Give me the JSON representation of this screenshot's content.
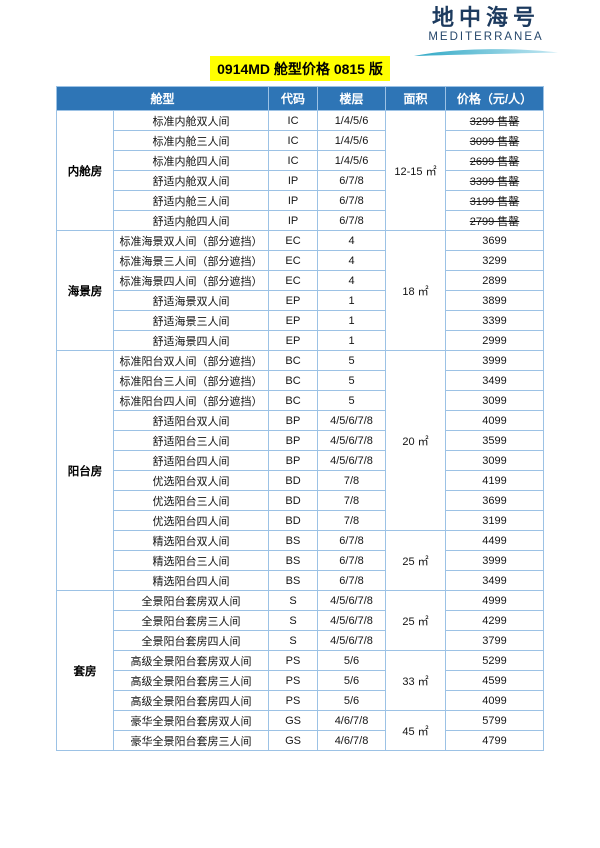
{
  "logo": {
    "title_cn": "地中海号",
    "title_en": "MEDITERRANEA"
  },
  "title": "0914MD 舱型价格 0815 版",
  "colors": {
    "header_bg": "#2E75B6",
    "border": "#9CC2E5",
    "title_bg": "#FFFF00",
    "logo_navy": "#1C3A5E",
    "swoosh_start": "#2FA8C5",
    "swoosh_end": "#C3E7F2"
  },
  "table": {
    "headers": {
      "cabin_type": "舱型",
      "code": "代码",
      "floor": "楼层",
      "area": "面积",
      "price": "价格（元/人）"
    },
    "sold_out_label": "售罄",
    "groups": [
      {
        "label": "内舱房",
        "areas": [
          {
            "label": "12-15 ㎡",
            "span": 6
          }
        ],
        "rows": [
          {
            "name": "标准内舱双人间",
            "code": "IC",
            "floor": "1/4/5/6",
            "price": "3299",
            "sold_out": true
          },
          {
            "name": "标准内舱三人间",
            "code": "IC",
            "floor": "1/4/5/6",
            "price": "3099",
            "sold_out": true
          },
          {
            "name": "标准内舱四人间",
            "code": "IC",
            "floor": "1/4/5/6",
            "price": "2699",
            "sold_out": true
          },
          {
            "name": "舒适内舱双人间",
            "code": "IP",
            "floor": "6/7/8",
            "price": "3399",
            "sold_out": true
          },
          {
            "name": "舒适内舱三人间",
            "code": "IP",
            "floor": "6/7/8",
            "price": "3199",
            "sold_out": true
          },
          {
            "name": "舒适内舱四人间",
            "code": "IP",
            "floor": "6/7/8",
            "price": "2799",
            "sold_out": true
          }
        ]
      },
      {
        "label": "海景房",
        "areas": [
          {
            "label": "18 ㎡",
            "span": 6
          }
        ],
        "rows": [
          {
            "name": "标准海景双人间（部分遮挡）",
            "code": "EC",
            "floor": "4",
            "price": "3699",
            "sold_out": false
          },
          {
            "name": "标准海景三人间（部分遮挡）",
            "code": "EC",
            "floor": "4",
            "price": "3299",
            "sold_out": false
          },
          {
            "name": "标准海景四人间（部分遮挡）",
            "code": "EC",
            "floor": "4",
            "price": "2899",
            "sold_out": false
          },
          {
            "name": "舒适海景双人间",
            "code": "EP",
            "floor": "1",
            "price": "3899",
            "sold_out": false
          },
          {
            "name": "舒适海景三人间",
            "code": "EP",
            "floor": "1",
            "price": "3399",
            "sold_out": false
          },
          {
            "name": "舒适海景四人间",
            "code": "EP",
            "floor": "1",
            "price": "2999",
            "sold_out": false
          }
        ]
      },
      {
        "label": "阳台房",
        "areas": [
          {
            "label": "20 ㎡",
            "span": 9
          },
          {
            "label": "25 ㎡",
            "span": 3
          }
        ],
        "rows": [
          {
            "name": "标准阳台双人间（部分遮挡）",
            "code": "BC",
            "floor": "5",
            "price": "3999",
            "sold_out": false
          },
          {
            "name": "标准阳台三人间（部分遮挡）",
            "code": "BC",
            "floor": "5",
            "price": "3499",
            "sold_out": false
          },
          {
            "name": "标准阳台四人间（部分遮挡）",
            "code": "BC",
            "floor": "5",
            "price": "3099",
            "sold_out": false
          },
          {
            "name": "舒适阳台双人间",
            "code": "BP",
            "floor": "4/5/6/7/8",
            "price": "4099",
            "sold_out": false
          },
          {
            "name": "舒适阳台三人间",
            "code": "BP",
            "floor": "4/5/6/7/8",
            "price": "3599",
            "sold_out": false
          },
          {
            "name": "舒适阳台四人间",
            "code": "BP",
            "floor": "4/5/6/7/8",
            "price": "3099",
            "sold_out": false
          },
          {
            "name": "优选阳台双人间",
            "code": "BD",
            "floor": "7/8",
            "price": "4199",
            "sold_out": false
          },
          {
            "name": "优选阳台三人间",
            "code": "BD",
            "floor": "7/8",
            "price": "3699",
            "sold_out": false
          },
          {
            "name": "优选阳台四人间",
            "code": "BD",
            "floor": "7/8",
            "price": "3199",
            "sold_out": false
          },
          {
            "name": "精选阳台双人间",
            "code": "BS",
            "floor": "6/7/8",
            "price": "4499",
            "sold_out": false
          },
          {
            "name": "精选阳台三人间",
            "code": "BS",
            "floor": "6/7/8",
            "price": "3999",
            "sold_out": false
          },
          {
            "name": "精选阳台四人间",
            "code": "BS",
            "floor": "6/7/8",
            "price": "3499",
            "sold_out": false
          }
        ]
      },
      {
        "label": "套房",
        "areas": [
          {
            "label": "25 ㎡",
            "span": 3
          },
          {
            "label": "33 ㎡",
            "span": 3
          },
          {
            "label": "45 ㎡",
            "span": 2
          }
        ],
        "rows": [
          {
            "name": "全景阳台套房双人间",
            "code": "S",
            "floor": "4/5/6/7/8",
            "price": "4999",
            "sold_out": false
          },
          {
            "name": "全景阳台套房三人间",
            "code": "S",
            "floor": "4/5/6/7/8",
            "price": "4299",
            "sold_out": false
          },
          {
            "name": "全景阳台套房四人间",
            "code": "S",
            "floor": "4/5/6/7/8",
            "price": "3799",
            "sold_out": false
          },
          {
            "name": "高级全景阳台套房双人间",
            "code": "PS",
            "floor": "5/6",
            "price": "5299",
            "sold_out": false
          },
          {
            "name": "高级全景阳台套房三人间",
            "code": "PS",
            "floor": "5/6",
            "price": "4599",
            "sold_out": false
          },
          {
            "name": "高级全景阳台套房四人间",
            "code": "PS",
            "floor": "5/6",
            "price": "4099",
            "sold_out": false
          },
          {
            "name": "豪华全景阳台套房双人间",
            "code": "GS",
            "floor": "4/6/7/8",
            "price": "5799",
            "sold_out": false
          },
          {
            "name": "豪华全景阳台套房三人间",
            "code": "GS",
            "floor": "4/6/7/8",
            "price": "4799",
            "sold_out": false
          }
        ]
      }
    ]
  }
}
